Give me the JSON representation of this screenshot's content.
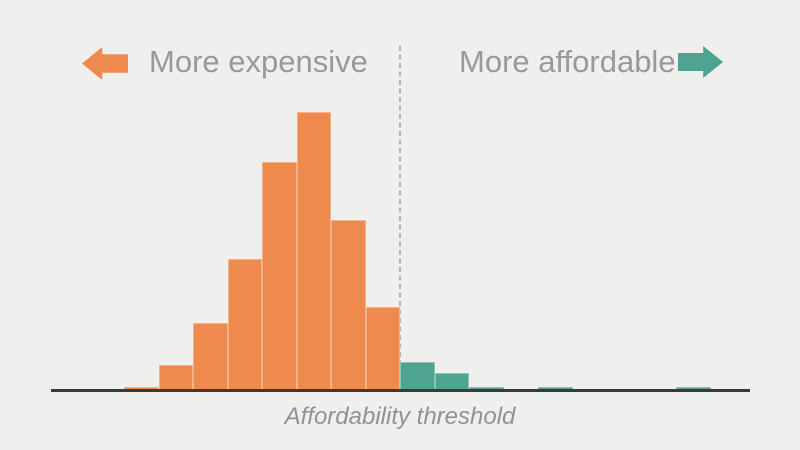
{
  "page": {
    "background_color": "#efefed"
  },
  "legend": {
    "left_label": "More expensive",
    "right_label": "More affordable",
    "left_arrow_color": "#ef8a4f",
    "right_arrow_color": "#4fa491",
    "label_color": "#999999"
  },
  "threshold": {
    "label": "Affordability threshold",
    "label_color": "#929292",
    "line_color": "#b3b3b3"
  },
  "axis": {
    "color": "#3a3a3a"
  },
  "chart_data": {
    "type": "bar",
    "subtype": "histogram",
    "title": "",
    "xlabel": "Affordability threshold",
    "ylabel": "",
    "grid": false,
    "y_axis_visible": false,
    "x_tick_labels_visible": false,
    "legend_position": "top",
    "annotations": [
      "More expensive (left of threshold)",
      "More affordable (right of threshold)",
      "Affordability threshold (dashed vertical line)"
    ],
    "categories": [
      "bin-01",
      "bin-02",
      "bin-03",
      "bin-04",
      "bin-05",
      "bin-06",
      "bin-07",
      "bin-08",
      "bin-09",
      "bin-10",
      "bin-11",
      "bin-12",
      "bin-13",
      "bin-14",
      "bin-15",
      "bin-16",
      "bin-17"
    ],
    "threshold_after_bin": 8,
    "ylim": [
      0,
      100
    ],
    "value_units": "relative frequency, percent of tallest bar (estimated from pixel heights)",
    "series": [
      {
        "name": "More expensive",
        "color": "#ef8a4f",
        "values": [
          1,
          9,
          24,
          47,
          82,
          100,
          61,
          30,
          0,
          0,
          0,
          0,
          0,
          0,
          0,
          0,
          0
        ]
      },
      {
        "name": "More affordable",
        "color": "#4fa491",
        "values": [
          0,
          0,
          0,
          0,
          0,
          0,
          0,
          0,
          10,
          6,
          1,
          0,
          1,
          0,
          0,
          0,
          1
        ]
      }
    ]
  }
}
